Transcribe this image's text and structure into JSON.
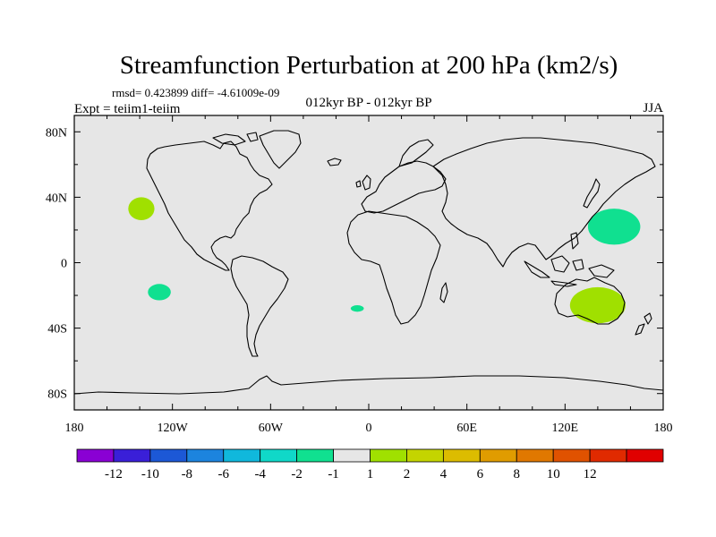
{
  "title": "Streamfunction Perturbation at 200 hPa (km2/s)",
  "stats_line": "rmsd= 0.423899 diff= -4.61009e-09",
  "experiment_label": "Expt = teiim1-teiim",
  "period_label": "012kyr BP - 012kyr BP",
  "season_label": "JJA",
  "map": {
    "lon_range": [
      -180,
      180
    ],
    "lat_range": [
      -90,
      90
    ],
    "ocean_color": "#e6e6e6",
    "x_ticks": [
      {
        "lon": -180,
        "label": "180"
      },
      {
        "lon": -120,
        "label": "120W"
      },
      {
        "lon": -60,
        "label": "60W"
      },
      {
        "lon": 0,
        "label": "0"
      },
      {
        "lon": 60,
        "label": "60E"
      },
      {
        "lon": 120,
        "label": "120E"
      },
      {
        "lon": 180,
        "label": "180"
      }
    ],
    "y_ticks": [
      {
        "lat": 80,
        "label": "80N"
      },
      {
        "lat": 40,
        "label": "40N"
      },
      {
        "lat": 0,
        "label": "0"
      },
      {
        "lat": -40,
        "label": "40S"
      },
      {
        "lat": -80,
        "label": "80S"
      }
    ],
    "anomaly_regions": [
      {
        "name": "northeast-pacific-positive",
        "lon": -139,
        "lat": 33,
        "rlon": 8,
        "rlat": 7,
        "color": "#a0e000"
      },
      {
        "name": "southeast-pacific-negative",
        "lon": -128,
        "lat": -18,
        "rlon": 7,
        "rlat": 5,
        "color": "#10e090"
      },
      {
        "name": "south-atlantic-negative",
        "lon": -7,
        "lat": -28,
        "rlon": 4,
        "rlat": 2,
        "color": "#10e090"
      },
      {
        "name": "northwest-pacific-negative",
        "lon": 150,
        "lat": 22,
        "rlon": 16,
        "rlat": 11,
        "color": "#10e090"
      },
      {
        "name": "australia-positive",
        "lon": 140,
        "lat": -26,
        "rlon": 17,
        "rlat": 11,
        "color": "#a0e000"
      }
    ]
  },
  "colorbar": {
    "colors": [
      "#8a00d4",
      "#3a1fd8",
      "#1c58d6",
      "#1c84de",
      "#10b8dc",
      "#10d8c8",
      "#10e090",
      "#e6e6e6",
      "#a0e000",
      "#c4d400",
      "#dcbc00",
      "#e09c00",
      "#e07800",
      "#e05200",
      "#e02a00",
      "#e00000"
    ],
    "labels": [
      "-12",
      "-10",
      "-8",
      "-6",
      "-4",
      "-2",
      "-1",
      "1",
      "2",
      "4",
      "6",
      "8",
      "10",
      "12"
    ]
  }
}
